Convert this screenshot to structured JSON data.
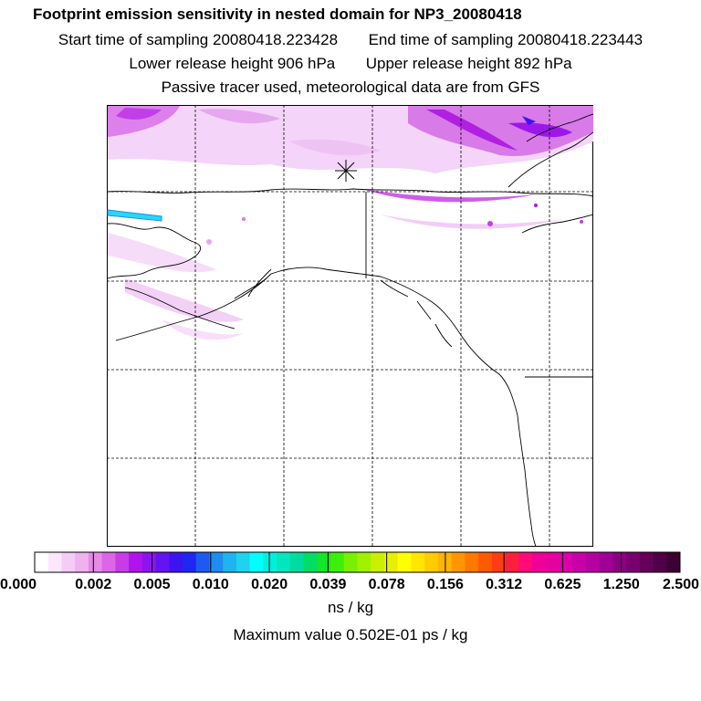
{
  "title": "Footprint emission sensitivity in nested domain for NP3_20080418",
  "sampling": {
    "start_label": "Start time of sampling",
    "start_value": "20080418.223428",
    "end_label": "End time of sampling",
    "end_value": "20080418.223443"
  },
  "release": {
    "lower_label": "Lower release height",
    "lower_value": "906 hPa",
    "upper_label": "Upper release height",
    "upper_value": "892 hPa"
  },
  "note": "Passive tracer used, meteorological data are from GFS",
  "colorbar": {
    "tick_labels": [
      "0.000",
      "0.002",
      "0.005",
      "0.010",
      "0.020",
      "0.039",
      "0.078",
      "0.156",
      "0.312",
      "0.625",
      "1.250",
      "2.500"
    ],
    "units": "ns / kg",
    "colors": [
      "#ffffff",
      "#fbe6fb",
      "#f5ccf5",
      "#eeb2ee",
      "#e68ae6",
      "#dc66e6",
      "#c83ce8",
      "#b014ee",
      "#8c14f0",
      "#6414f0",
      "#3c14f0",
      "#1e28f0",
      "#1e5af0",
      "#1e8cf0",
      "#1eb4f0",
      "#1ed2f0",
      "#00ffff",
      "#00f0dc",
      "#00e6be",
      "#00dca0",
      "#00dc64",
      "#14e628",
      "#3cf00a",
      "#78f000",
      "#a0f000",
      "#c8f000",
      "#e6f000",
      "#ffff00",
      "#ffe600",
      "#ffcc00",
      "#ffb400",
      "#ff9600",
      "#ff7800",
      "#ff5a00",
      "#ff3c14",
      "#ff1e3c",
      "#ff0a78",
      "#f00096",
      "#e600a0",
      "#dc00aa",
      "#c800aa",
      "#b400a0",
      "#a00096",
      "#8c0082",
      "#78006e",
      "#64005a",
      "#500046",
      "#3c0032"
    ]
  },
  "maximum": "Maximum value  0.502E-01 ps / kg",
  "map": {
    "release_marker": "star",
    "land_outline_color": "#000000",
    "grid_style": "dashed",
    "footprint_color": "#cc33ff"
  }
}
